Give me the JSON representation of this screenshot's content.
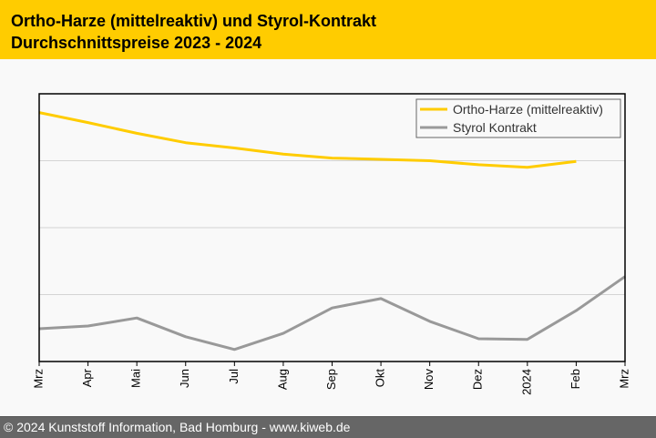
{
  "header": {
    "title_line1": "Ortho-Harze (mittelreaktiv) und Styrol-Kontrakt",
    "title_line2": "Durchschnittspreise 2023 - 2024"
  },
  "footer": {
    "text": "© 2024 Kunststoff Information, Bad Homburg - www.kiweb.de"
  },
  "chart_data": {
    "type": "line",
    "title": "Ortho-Harze (mittelreaktiv) und Styrol-Kontrakt Durchschnittspreise 2023 - 2024",
    "xlabel": "",
    "ylabel": "",
    "categories": [
      "Mrz",
      "Apr",
      "Mai",
      "Jun",
      "Jul",
      "Aug",
      "Sep",
      "Okt",
      "Nov",
      "Dez",
      "2024",
      "Feb",
      "Mrz"
    ],
    "ylim": [
      0,
      4
    ],
    "y_note": "relative scale (no y-axis labels shown); units = gridline bands",
    "grid": true,
    "legend_position": "top-right",
    "series": [
      {
        "name": "Ortho-Harze (mittelreaktiv)",
        "color": "#ffcc00",
        "values": [
          3.72,
          3.57,
          3.41,
          3.27,
          3.19,
          3.1,
          3.04,
          3.02,
          3.0,
          2.94,
          2.9,
          2.99,
          null
        ]
      },
      {
        "name": "Styrol Kontrakt",
        "color": "#999999",
        "values": [
          0.49,
          0.53,
          0.65,
          0.37,
          0.18,
          0.42,
          0.8,
          0.94,
          0.6,
          0.34,
          0.33,
          0.76,
          1.27
        ]
      }
    ]
  }
}
